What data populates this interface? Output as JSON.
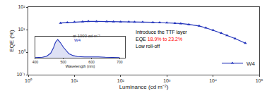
{
  "chart_data": [
    {
      "type": "line",
      "xlabel": "Luminance (cd m⁻²)",
      "ylabel": "EQE (%)",
      "log": true,
      "x": [
        5,
        7,
        10,
        15,
        20,
        30,
        50,
        70,
        100,
        150,
        200,
        300,
        500,
        700,
        1000,
        1500,
        2000,
        3000,
        5000,
        7000,
        10000,
        15000,
        20000,
        30000,
        50000
      ],
      "series": [
        {
          "name": "W4",
          "color": "#2233bb",
          "marker": "triangle",
          "line_style": "solid",
          "values": [
            19.5,
            20.5,
            21.5,
            22.5,
            23.2,
            23.0,
            22.8,
            22.5,
            22.2,
            22.0,
            21.8,
            21.5,
            21.0,
            20.5,
            20.0,
            19.2,
            18.5,
            17.0,
            14.5,
            12.0,
            9.5,
            7.0,
            5.5,
            4.0,
            2.5
          ]
        }
      ],
      "xlim": [
        1,
        100000
      ],
      "ylim": [
        0.1,
        100
      ],
      "xticks": [
        {
          "value": 1,
          "label": "10⁰"
        },
        {
          "value": 10,
          "label": "10¹"
        },
        {
          "value": 100,
          "label": "10²"
        },
        {
          "value": 1000,
          "label": "10³"
        },
        {
          "value": 10000,
          "label": "10⁴"
        },
        {
          "value": 100000,
          "label": "10⁵"
        }
      ],
      "yticks": [
        {
          "value": 0.1,
          "label": "10⁻¹"
        },
        {
          "value": 1,
          "label": "10⁰"
        },
        {
          "value": 10,
          "label": "10¹"
        },
        {
          "value": 100,
          "label": "10²"
        }
      ],
      "grid": false,
      "legend": "lower right",
      "annotations": [
        [
          {
            "text": "Introduce the TTF layer",
            "color": "#000000"
          }
        ],
        [
          {
            "text": "EQE",
            "color": "#000000"
          },
          {
            "text": "18.9% to 23.2%",
            "color": "red"
          }
        ],
        [
          {
            "text": "Low roll-off",
            "color": "#000000"
          }
        ]
      ]
    },
    {
      "type": "area",
      "xlabel": "Wavelength (nm)",
      "x": [
        400,
        425,
        440,
        455,
        465,
        472,
        480,
        490,
        500,
        510,
        520,
        535,
        550,
        575,
        600,
        625,
        650,
        700
      ],
      "series": [
        {
          "color": "#2233bb",
          "values": [
            0.01,
            0.03,
            0.08,
            0.25,
            0.55,
            0.85,
            1.0,
            0.82,
            0.58,
            0.38,
            0.22,
            0.12,
            0.07,
            0.05,
            0.06,
            0.05,
            0.03,
            0.01
          ]
        }
      ],
      "xlim": [
        400,
        720
      ],
      "ylim": [
        0,
        1.15
      ],
      "xticks": [
        400,
        500,
        600,
        700
      ],
      "tick_labels": "x",
      "grid": false,
      "annotations": [
        [
          {
            "text": "at 1000 cd m⁻²",
            "color": "#333333"
          }
        ],
        [
          {
            "text": "W4",
            "color": "#2233bb"
          }
        ]
      ]
    }
  ]
}
